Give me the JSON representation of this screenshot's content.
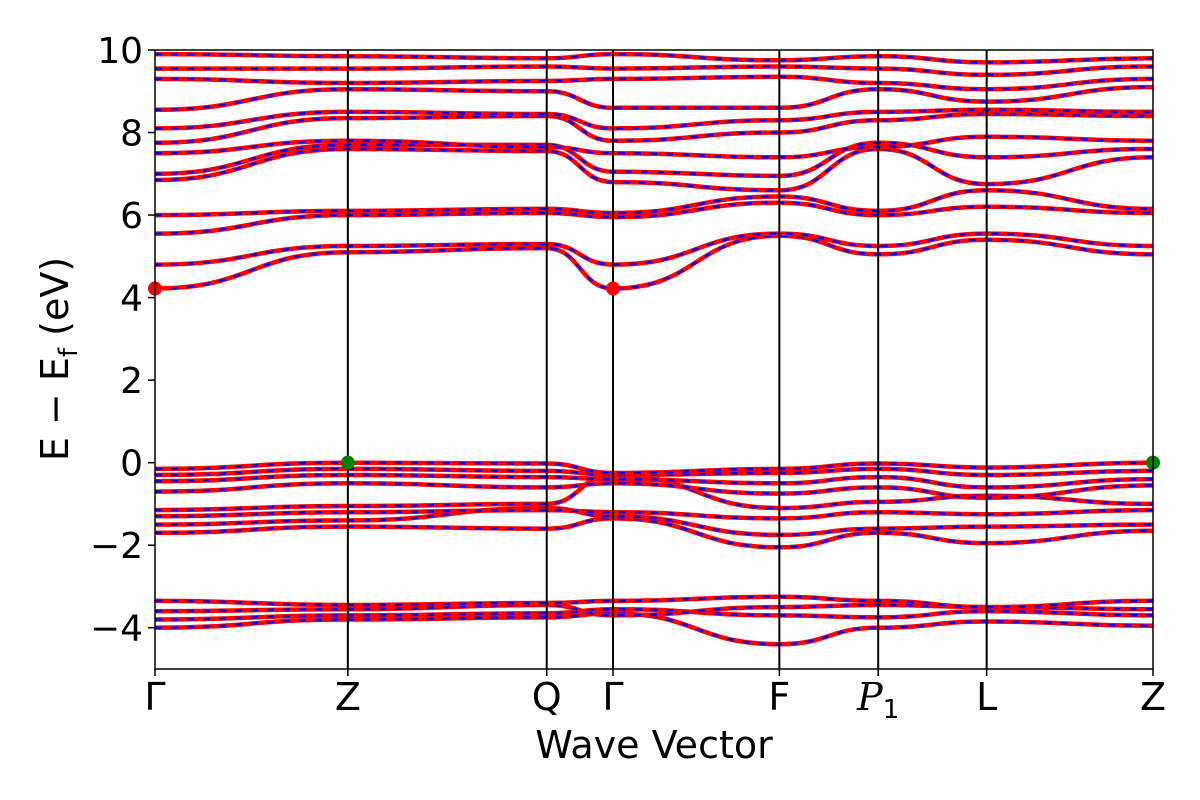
{
  "chart_data": {
    "type": "line",
    "xlabel": "Wave Vector",
    "ylabel": {
      "main": "E − E",
      "subscript": "f",
      "unit": "(eV)"
    },
    "ylim": [
      -5,
      10
    ],
    "yticks": [
      "−4",
      "−2",
      "0",
      "2",
      "4",
      "6",
      "8",
      "10"
    ],
    "ytick_values": [
      -4,
      -2,
      0,
      2,
      4,
      6,
      8,
      10
    ],
    "kpath_positions": [
      0,
      1.6,
      3.25,
      3.8,
      5.18,
      6.0,
      6.9,
      8.28
    ],
    "kpath_labels": [
      {
        "text": "Γ"
      },
      {
        "text": "Z"
      },
      {
        "text": "Q"
      },
      {
        "text": "Γ"
      },
      {
        "text": "F"
      },
      {
        "text": "P",
        "sub": "1"
      },
      {
        "text": "L"
      },
      {
        "text": "Z"
      }
    ],
    "series_colors": {
      "spin_up": "#ff0000",
      "spin_down": "#0000ff"
    },
    "cbm_marker": {
      "color": "#ff0000",
      "points": [
        [
          0,
          4.22
        ],
        [
          3.8,
          4.22
        ]
      ]
    },
    "vbm_marker": {
      "color": "#008000",
      "points": [
        [
          1.6,
          0.0
        ],
        [
          8.28,
          0.0
        ]
      ]
    },
    "bands": [
      {
        "x": [
          0,
          1.6,
          3.25,
          3.8,
          5.18,
          6.0,
          6.9,
          8.28
        ],
        "y": [
          -4.0,
          -3.8,
          -3.75,
          -3.65,
          -4.4,
          -4.0,
          -3.85,
          -3.95
        ]
      },
      {
        "x": [
          0,
          1.6,
          3.25,
          3.8,
          5.18,
          6.0,
          6.9,
          8.28
        ],
        "y": [
          -3.8,
          -3.7,
          -3.65,
          -3.55,
          -3.7,
          -3.75,
          -3.6,
          -3.7
        ]
      },
      {
        "x": [
          0,
          1.6,
          3.25,
          3.8,
          5.18,
          6.0,
          6.9,
          8.28
        ],
        "y": [
          -3.6,
          -3.55,
          -3.45,
          -3.7,
          -3.5,
          -3.45,
          -3.5,
          -3.55
        ]
      },
      {
        "x": [
          0,
          1.6,
          3.25,
          3.8,
          5.18,
          6.0,
          6.9,
          8.28
        ],
        "y": [
          -3.35,
          -3.45,
          -3.4,
          -3.35,
          -3.25,
          -3.35,
          -3.5,
          -3.35
        ]
      },
      {
        "x": [
          0,
          1.6,
          3.25,
          3.8,
          5.18,
          6.0,
          6.9,
          8.28
        ],
        "y": [
          -1.7,
          -1.55,
          -1.6,
          -1.35,
          -2.05,
          -1.7,
          -1.95,
          -1.65
        ]
      },
      {
        "x": [
          0,
          1.6,
          3.25,
          3.8,
          5.18,
          6.0,
          6.9,
          8.28
        ],
        "y": [
          -1.5,
          -1.4,
          -1.1,
          -1.3,
          -1.75,
          -1.6,
          -1.55,
          -1.5
        ]
      },
      {
        "x": [
          0,
          1.6,
          3.25,
          3.8,
          5.18,
          6.0,
          6.9,
          8.28
        ],
        "y": [
          -1.3,
          -1.2,
          -1.15,
          -1.2,
          -1.35,
          -1.2,
          -1.25,
          -1.15
        ]
      },
      {
        "x": [
          0,
          1.6,
          3.25,
          3.8,
          5.18,
          6.0,
          6.9,
          8.28
        ],
        "y": [
          -1.15,
          -1.05,
          -1.0,
          -0.3,
          -1.1,
          -0.95,
          -0.8,
          -1.0
        ]
      },
      {
        "x": [
          0,
          1.6,
          3.25,
          3.8,
          5.18,
          6.0,
          6.9,
          8.28
        ],
        "y": [
          -0.7,
          -0.5,
          -0.6,
          -0.5,
          -0.75,
          -0.6,
          -0.85,
          -0.55
        ]
      },
      {
        "x": [
          0,
          1.6,
          3.25,
          3.8,
          5.18,
          6.0,
          6.9,
          8.28
        ],
        "y": [
          -0.45,
          -0.3,
          -0.35,
          -0.4,
          -0.5,
          -0.35,
          -0.6,
          -0.4
        ]
      },
      {
        "x": [
          0,
          1.6,
          3.25,
          3.8,
          5.18,
          6.0,
          6.9,
          8.28
        ],
        "y": [
          -0.3,
          -0.15,
          -0.2,
          -0.3,
          -0.25,
          -0.15,
          -0.3,
          -0.2
        ]
      },
      {
        "x": [
          0,
          1.6,
          3.25,
          3.8,
          5.18,
          6.0,
          6.9,
          8.28
        ],
        "y": [
          -0.15,
          0.0,
          -0.02,
          -0.25,
          -0.15,
          -0.02,
          -0.12,
          0.0
        ]
      },
      {
        "x": [
          0,
          1.6,
          3.25,
          3.8,
          5.18,
          6.0,
          6.9,
          8.28
        ],
        "y": [
          4.22,
          5.1,
          5.2,
          4.22,
          5.5,
          5.05,
          5.4,
          5.05
        ]
      },
      {
        "x": [
          0,
          1.6,
          3.25,
          3.8,
          5.18,
          6.0,
          6.9,
          8.28
        ],
        "y": [
          4.8,
          5.25,
          5.3,
          4.8,
          5.55,
          5.25,
          5.55,
          5.25
        ]
      },
      {
        "x": [
          0,
          1.6,
          3.25,
          3.8,
          5.18,
          6.0,
          6.9,
          8.28
        ],
        "y": [
          5.55,
          6.0,
          6.05,
          5.95,
          6.3,
          6.0,
          6.2,
          6.05
        ]
      },
      {
        "x": [
          0,
          1.6,
          3.25,
          3.8,
          5.18,
          6.0,
          6.9,
          8.28
        ],
        "y": [
          6.0,
          6.1,
          6.15,
          6.05,
          6.45,
          6.1,
          6.6,
          6.15
        ]
      },
      {
        "x": [
          0,
          1.6,
          3.25,
          3.8,
          5.18,
          6.0,
          6.9,
          8.28
        ],
        "y": [
          6.85,
          7.6,
          7.55,
          6.8,
          6.6,
          7.6,
          6.75,
          7.4
        ]
      },
      {
        "x": [
          0,
          1.6,
          3.25,
          3.8,
          5.18,
          6.0,
          6.9,
          8.28
        ],
        "y": [
          7.0,
          7.7,
          7.7,
          7.05,
          6.95,
          7.75,
          7.4,
          7.6
        ]
      },
      {
        "x": [
          0,
          1.6,
          3.25,
          3.8,
          5.18,
          6.0,
          6.9,
          8.28
        ],
        "y": [
          7.5,
          7.8,
          7.65,
          7.5,
          7.4,
          7.65,
          7.9,
          7.8
        ]
      },
      {
        "x": [
          0,
          1.6,
          3.25,
          3.8,
          5.18,
          6.0,
          6.9,
          8.28
        ],
        "y": [
          7.75,
          8.35,
          8.4,
          7.8,
          8.0,
          8.3,
          8.45,
          8.4
        ]
      },
      {
        "x": [
          0,
          1.6,
          3.25,
          3.8,
          5.18,
          6.0,
          6.9,
          8.28
        ],
        "y": [
          8.1,
          8.5,
          8.45,
          8.1,
          8.3,
          8.5,
          8.55,
          8.5
        ]
      },
      {
        "x": [
          0,
          1.6,
          3.25,
          3.8,
          5.18,
          6.0,
          6.9,
          8.28
        ],
        "y": [
          8.55,
          9.05,
          9.0,
          8.6,
          8.6,
          9.05,
          8.75,
          9.1
        ]
      },
      {
        "x": [
          0,
          1.6,
          3.25,
          3.8,
          5.18,
          6.0,
          6.9,
          8.28
        ],
        "y": [
          9.3,
          9.2,
          9.25,
          9.3,
          9.35,
          9.2,
          9.05,
          9.3
        ]
      },
      {
        "x": [
          0,
          1.6,
          3.25,
          3.8,
          5.18,
          6.0,
          6.9,
          8.28
        ],
        "y": [
          9.55,
          9.55,
          9.6,
          9.55,
          9.6,
          9.55,
          9.4,
          9.6
        ]
      },
      {
        "x": [
          0,
          1.6,
          3.25,
          3.8,
          5.18,
          6.0,
          6.9,
          8.28
        ],
        "y": [
          9.9,
          9.85,
          9.8,
          9.9,
          9.75,
          9.85,
          9.7,
          9.8
        ]
      }
    ]
  }
}
